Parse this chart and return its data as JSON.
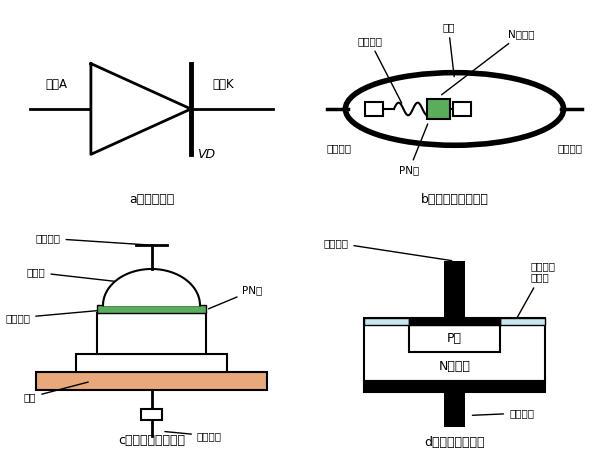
{
  "bg_color": "#ffffff",
  "label_a": "a）电路符号",
  "label_b": "b）点接触型二极管",
  "label_c": "c）面接触型二极管",
  "label_d": "d）平面型二极管",
  "green_color": "#5aad5a",
  "orange_color": "#e8a87c",
  "light_blue": "#c8e8f0",
  "light_gray": "#d8d8d8",
  "white": "#ffffff",
  "black": "#000000"
}
